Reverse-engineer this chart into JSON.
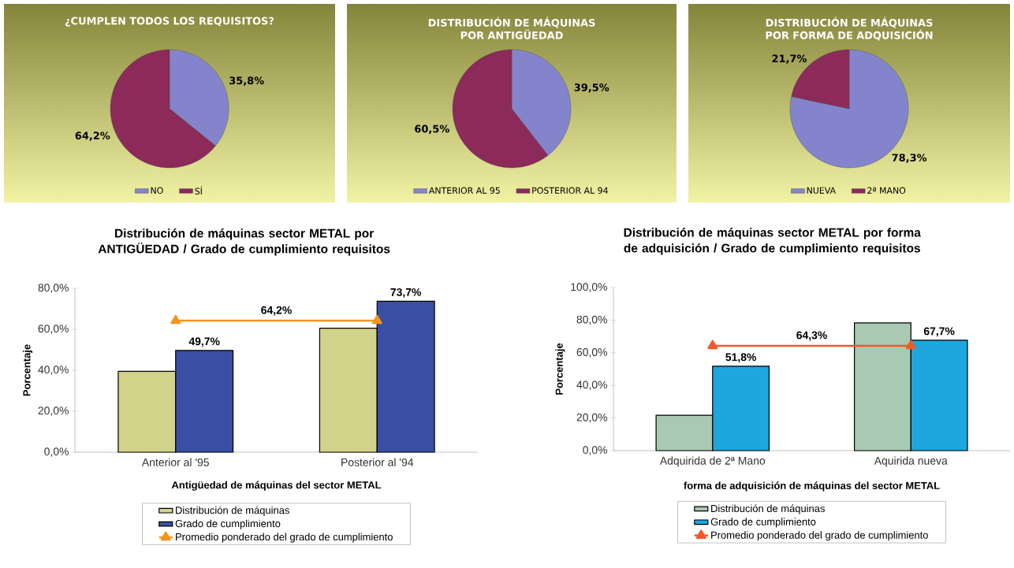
{
  "chart_data": [
    {
      "type": "pie",
      "title": "¿CUMPLEN TODOS LOS REQUISITOS?",
      "categories": [
        "NO",
        "SÍ"
      ],
      "values": [
        35.8,
        64.2
      ],
      "colors": [
        "#8484cc",
        "#8c2a5a"
      ],
      "value_labels": [
        "35,8%",
        "64,2%"
      ],
      "legend": "bottom"
    },
    {
      "type": "pie",
      "title": "DISTRIBUCIÓN DE MÁQUINAS POR ANTIGÜEDAD",
      "categories": [
        "ANTERIOR AL 95",
        "POSTERIOR AL 94"
      ],
      "values": [
        39.5,
        60.5
      ],
      "colors": [
        "#8484cc",
        "#8c2a5a"
      ],
      "value_labels": [
        "39,5%",
        "60,5%"
      ],
      "legend": "bottom"
    },
    {
      "type": "pie",
      "title": "DISTRIBUCIÓN DE MÁQUINAS POR FORMA DE ADQUISICIÓN",
      "categories": [
        "NUEVA",
        "2ª MANO"
      ],
      "values": [
        78.3,
        21.7
      ],
      "colors": [
        "#8484cc",
        "#8c2a5a"
      ],
      "value_labels": [
        "78,3%",
        "21,7%"
      ],
      "legend": "bottom"
    },
    {
      "type": "bar",
      "title": "Distribución de máquinas sector METAL por ANTIGÜEDAD / Grado de cumplimiento requisitos",
      "xlabel": "Antigüedad de máquinas del sector METAL",
      "ylabel": "Porcentaje",
      "categories": [
        "Anterior al '95",
        "Posterior al '94"
      ],
      "ylim": [
        0,
        80
      ],
      "yticks": [
        {
          "value": 0,
          "label": "0,0%"
        },
        {
          "value": 20,
          "label": "20,0%"
        },
        {
          "value": 40,
          "label": "40,0%"
        },
        {
          "value": 60,
          "label": "60,0%"
        },
        {
          "value": 80,
          "label": "80,0%"
        }
      ],
      "legend": "bottom",
      "series": [
        {
          "name": "Distribución de máquinas",
          "color": "#d2d28a",
          "values": [
            39.5,
            60.5
          ]
        },
        {
          "name": "Grado de cumplimiento",
          "color": "#3a4fa4",
          "values": [
            49.7,
            73.7
          ],
          "value_labels": [
            "49,7%",
            "73,7%"
          ]
        },
        {
          "name": "Promedio ponderado del grado de cumplimiento",
          "type": "line",
          "color": "#f7941d",
          "marker": "triangle",
          "values": [
            64.2,
            64.2
          ]
        }
      ],
      "annotations": [
        {
          "text": "64,2%",
          "y": 64.2
        }
      ]
    },
    {
      "type": "bar",
      "title": "Distribución de máquinas sector METAL por forma de adquisición / Grado de cumplimiento requisitos",
      "xlabel": "forma de adquisición de máquinas del sector METAL",
      "ylabel": "Porcentaje",
      "categories": [
        "Adquirida de 2ª Mano",
        "Aquirida nueva"
      ],
      "ylim": [
        0,
        100
      ],
      "yticks": [
        {
          "value": 0,
          "label": "0,0%"
        },
        {
          "value": 20,
          "label": "20,0%"
        },
        {
          "value": 40,
          "label": "40,0%"
        },
        {
          "value": 60,
          "label": "60,0%"
        },
        {
          "value": 80,
          "label": "80,0%"
        },
        {
          "value": 100,
          "label": "100,0%"
        }
      ],
      "legend": "bottom",
      "series": [
        {
          "name": "Distribución de máquinas",
          "color": "#a9c9b2",
          "values": [
            21.7,
            78.3
          ]
        },
        {
          "name": "Grado de cumplimiento",
          "color": "#1ea6de",
          "values": [
            51.8,
            67.7
          ],
          "value_labels": [
            "51,8%",
            "67,7%"
          ]
        },
        {
          "name": "Promedio ponderado del grado de cumplimiento",
          "type": "line",
          "color": "#f05a28",
          "marker": "triangle",
          "values": [
            64.3,
            64.3
          ]
        }
      ],
      "annotations": [
        {
          "text": "64,3%",
          "y": 64.3
        }
      ]
    }
  ]
}
